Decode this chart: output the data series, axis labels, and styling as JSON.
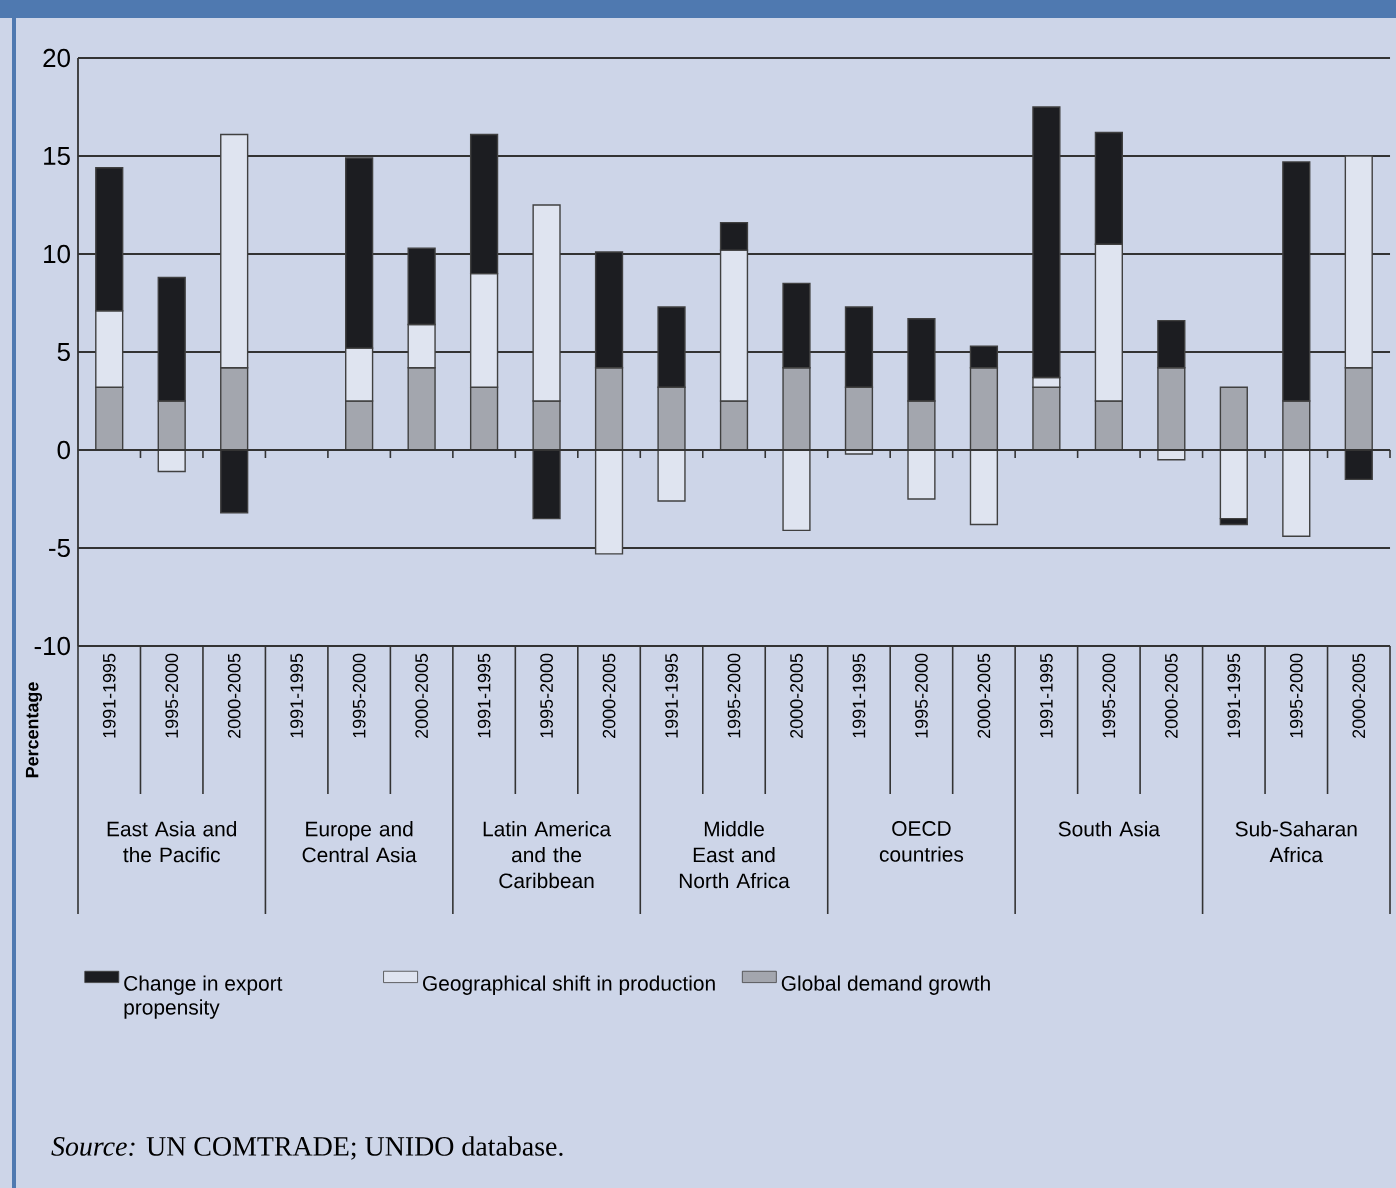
{
  "chart_data": {
    "type": "bar",
    "stacked": true,
    "categories": [
      "1991-1995",
      "1995-2000",
      "2000-2005",
      "1991-1995",
      "1995-2000",
      "2000-2005",
      "1991-1995",
      "1995-2000",
      "2000-2005",
      "1991-1995",
      "1995-2000",
      "2000-2005",
      "1991-1995",
      "1995-2000",
      "2000-2005",
      "1991-1995",
      "1995-2000",
      "2000-2005",
      "1991-1995",
      "1995-2000",
      "2000-2005"
    ],
    "series": [
      {
        "name": "Global demand growth",
        "color": "#a3a6ae",
        "values": [
          3.2,
          2.5,
          4.2,
          null,
          2.5,
          4.2,
          3.2,
          2.5,
          4.2,
          3.2,
          2.5,
          4.2,
          3.2,
          2.5,
          4.2,
          3.2,
          2.5,
          4.2,
          3.2,
          2.5,
          4.2
        ]
      },
      {
        "name": "Geographical shift in production",
        "color": "#dfe4f0",
        "values": [
          3.9,
          -1.1,
          11.9,
          null,
          2.7,
          2.2,
          5.8,
          10.0,
          -5.3,
          -2.6,
          7.7,
          -4.1,
          -0.2,
          -2.5,
          -3.8,
          0.5,
          8.0,
          -0.5,
          -3.5,
          -4.4,
          10.8
        ]
      },
      {
        "name": "Change in export propensity",
        "color": "#1c1d21",
        "values": [
          7.3,
          6.3,
          -3.2,
          null,
          9.7,
          3.9,
          7.1,
          -3.5,
          5.9,
          4.1,
          1.4,
          4.3,
          4.1,
          4.2,
          1.1,
          13.8,
          5.7,
          2.4,
          -0.3,
          12.2,
          -1.5
        ]
      }
    ],
    "ylabel": "Percentage",
    "ylim": [
      -10,
      20
    ],
    "yticks": [
      -10,
      -5,
      0,
      5,
      10,
      15,
      20
    ],
    "grid": "y",
    "legend": "bottom left",
    "annotations": [
      "East Asia and the Pacific",
      "Europe and Central Asia",
      "Latin America and the Caribbean",
      "Middle East and North Africa",
      "OECD countries",
      "South Asia",
      "Sub-Saharan Africa",
      "*Source:* UN COMTRADE; UNIDO database."
    ]
  }
}
